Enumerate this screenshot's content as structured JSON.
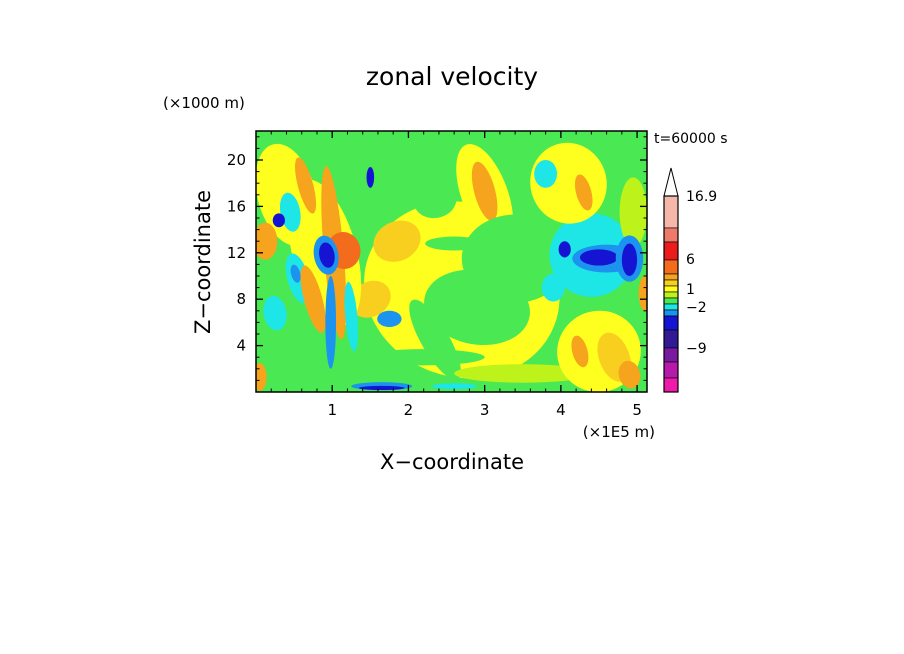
{
  "chart_data": {
    "type": "heatmap",
    "title": "zonal velocity",
    "xlabel": "X−coordinate",
    "ylabel": "Z−coordinate",
    "x_unit": "(×1E5 m)",
    "y_unit": "(×1000 m)",
    "time_label": "t=60000 s",
    "xlim": [
      0,
      5.13
    ],
    "ylim": [
      0,
      22.5
    ],
    "x_ticks": [
      1,
      2,
      3,
      4,
      5
    ],
    "x_tick_labels": [
      "1",
      "2",
      "3",
      "4",
      "5"
    ],
    "y_ticks": [
      4,
      8,
      12,
      16,
      20
    ],
    "y_tick_labels": [
      "4",
      "8",
      "12",
      "16",
      "20"
    ],
    "colorbar": {
      "extend_max": true,
      "labels": [
        "16.9",
        "6",
        "1",
        "−2",
        "−9"
      ],
      "bands": [
        {
          "color": "#f6b7ab"
        },
        {
          "color": "#ee7a6b"
        },
        {
          "color": "#ec1c1c"
        },
        {
          "color": "#f36b1c"
        },
        {
          "color": "#f6a31d"
        },
        {
          "color": "#f8cf1f"
        },
        {
          "color": "#ffff1f"
        },
        {
          "color": "#bdf21a"
        },
        {
          "color": "#4ae852"
        },
        {
          "color": "#1ee6e6"
        },
        {
          "color": "#1c93ee"
        },
        {
          "color": "#1414d2"
        },
        {
          "color": "#321a96"
        },
        {
          "color": "#7a1aa0"
        },
        {
          "color": "#b61aaa"
        },
        {
          "color": "#ee1aaa"
        }
      ]
    },
    "regions": [
      {
        "shape": "rect",
        "x": 0,
        "y": 0,
        "w": 5.13,
        "h": 22.5,
        "color": "#4ae852"
      },
      {
        "shape": "ellipse",
        "cx": 2.7,
        "cy": 8.8,
        "rx": 1.3,
        "ry": 7.5,
        "rot": 20,
        "color": "#ffff1f"
      },
      {
        "shape": "ellipse",
        "cx": 3.0,
        "cy": 17.0,
        "rx": 0.7,
        "ry": 2.0,
        "rot": 70,
        "color": "#ffff1f"
      },
      {
        "shape": "ellipse",
        "cx": 3.0,
        "cy": 17.3,
        "rx": 0.4,
        "ry": 0.9,
        "rot": 75,
        "color": "#f6a31d"
      },
      {
        "shape": "ellipse",
        "cx": 3.4,
        "cy": 11.5,
        "rx": 0.7,
        "ry": 3.8,
        "rot": 0,
        "color": "#4ae852"
      },
      {
        "shape": "ellipse",
        "cx": 2.9,
        "cy": 7.3,
        "rx": 0.7,
        "ry": 3.2,
        "rot": 10,
        "color": "#4ae852"
      },
      {
        "shape": "ellipse",
        "cx": 2.35,
        "cy": 16.5,
        "rx": 0.28,
        "ry": 1.5,
        "rot": -10,
        "color": "#4ae852"
      },
      {
        "shape": "ellipse",
        "cx": 2.35,
        "cy": 4.5,
        "rx": 0.6,
        "ry": 1.2,
        "rot": 60,
        "color": "#4ae852"
      },
      {
        "shape": "ellipse",
        "cx": 3.5,
        "cy": 1.6,
        "rx": 0.9,
        "ry": 0.8,
        "rot": 0,
        "color": "#bdf21a"
      },
      {
        "shape": "ellipse",
        "cx": 2.2,
        "cy": 3.0,
        "rx": 0.8,
        "ry": 0.7,
        "rot": 0,
        "color": "#4ae852"
      },
      {
        "shape": "ellipse",
        "cx": 2.6,
        "cy": 12.8,
        "rx": 0.38,
        "ry": 0.6,
        "rot": 0,
        "color": "#4ae852"
      },
      {
        "shape": "ellipse",
        "cx": 1.85,
        "cy": 13.0,
        "rx": 0.32,
        "ry": 1.7,
        "rot": -25,
        "color": "#f8cf1f"
      },
      {
        "shape": "ellipse",
        "cx": 1.5,
        "cy": 8.0,
        "rx": 0.28,
        "ry": 1.5,
        "rot": -30,
        "color": "#f8cf1f"
      },
      {
        "shape": "ellipse",
        "cx": 1.2,
        "cy": 16.0,
        "rx": 0.18,
        "ry": 2.8,
        "rot": -20,
        "color": "#4ae852"
      },
      {
        "shape": "ellipse",
        "cx": 1.75,
        "cy": 20.5,
        "rx": 0.45,
        "ry": 1.0,
        "rot": 30,
        "color": "#4ae852"
      },
      {
        "shape": "ellipse",
        "cx": 0.4,
        "cy": 17.0,
        "rx": 0.38,
        "ry": 4.5,
        "rot": -15,
        "color": "#ffff1f"
      },
      {
        "shape": "ellipse",
        "cx": 0.9,
        "cy": 12.0,
        "rx": 0.42,
        "ry": 6.5,
        "rot": -15,
        "color": "#ffff1f"
      },
      {
        "shape": "ellipse",
        "cx": 0.2,
        "cy": 10.0,
        "rx": 0.22,
        "ry": 3.5,
        "rot": -10,
        "color": "#4ae852"
      },
      {
        "shape": "ellipse",
        "cx": 0.55,
        "cy": 4.5,
        "rx": 0.4,
        "ry": 3.5,
        "rot": -20,
        "color": "#4ae852"
      },
      {
        "shape": "ellipse",
        "cx": 0.12,
        "cy": 13.0,
        "rx": 0.16,
        "ry": 1.6,
        "rot": 0,
        "color": "#f6a31d"
      },
      {
        "shape": "ellipse",
        "cx": 0.65,
        "cy": 17.8,
        "rx": 0.1,
        "ry": 2.5,
        "rot": -15,
        "color": "#f6a31d"
      },
      {
        "shape": "ellipse",
        "cx": 0.45,
        "cy": 15.5,
        "rx": 0.13,
        "ry": 1.7,
        "rot": -10,
        "color": "#1ee6e6"
      },
      {
        "shape": "ellipse",
        "cx": 0.3,
        "cy": 14.8,
        "rx": 0.08,
        "ry": 0.6,
        "rot": 0,
        "color": "#1414d2"
      },
      {
        "shape": "ellipse",
        "cx": 0.55,
        "cy": 9.8,
        "rx": 0.14,
        "ry": 2.2,
        "rot": -15,
        "color": "#1ee6e6"
      },
      {
        "shape": "ellipse",
        "cx": 0.52,
        "cy": 10.2,
        "rx": 0.06,
        "ry": 0.8,
        "rot": -15,
        "color": "#1c93ee"
      },
      {
        "shape": "ellipse",
        "cx": 0.25,
        "cy": 6.8,
        "rx": 0.15,
        "ry": 1.5,
        "rot": -10,
        "color": "#1ee6e6"
      },
      {
        "shape": "ellipse",
        "cx": 0.75,
        "cy": 8.0,
        "rx": 0.12,
        "ry": 3.0,
        "rot": -15,
        "color": "#f6a31d"
      },
      {
        "shape": "ellipse",
        "cx": 1.02,
        "cy": 12.0,
        "rx": 0.13,
        "ry": 7.5,
        "rot": -5,
        "color": "#f6a31d"
      },
      {
        "shape": "ellipse",
        "cx": 1.15,
        "cy": 12.2,
        "rx": 0.22,
        "ry": 1.6,
        "rot": -10,
        "color": "#f36b1c"
      },
      {
        "shape": "ellipse",
        "cx": 0.92,
        "cy": 11.8,
        "rx": 0.16,
        "ry": 1.7,
        "rot": -10,
        "color": "#1c93ee"
      },
      {
        "shape": "ellipse",
        "cx": 0.93,
        "cy": 11.8,
        "rx": 0.1,
        "ry": 1.1,
        "rot": -10,
        "color": "#1414d2"
      },
      {
        "shape": "ellipse",
        "cx": 0.98,
        "cy": 6.0,
        "rx": 0.07,
        "ry": 4.0,
        "rot": 0,
        "color": "#1c93ee"
      },
      {
        "shape": "ellipse",
        "cx": 1.25,
        "cy": 6.5,
        "rx": 0.08,
        "ry": 3.0,
        "rot": -5,
        "color": "#1ee6e6"
      },
      {
        "shape": "ellipse",
        "cx": 1.5,
        "cy": 18.5,
        "rx": 0.05,
        "ry": 0.9,
        "rot": 0,
        "color": "#1414d2"
      },
      {
        "shape": "ellipse",
        "cx": 1.75,
        "cy": 6.3,
        "rx": 0.16,
        "ry": 0.7,
        "rot": 0,
        "color": "#1c93ee"
      },
      {
        "shape": "ellipse",
        "cx": 0.05,
        "cy": 1.3,
        "rx": 0.09,
        "ry": 1.2,
        "rot": 0,
        "color": "#f6a31d"
      },
      {
        "shape": "ellipse",
        "cx": 1.65,
        "cy": 0.5,
        "rx": 0.4,
        "ry": 0.35,
        "rot": 0,
        "color": "#1c93ee"
      },
      {
        "shape": "ellipse",
        "cx": 1.65,
        "cy": 0.35,
        "rx": 0.3,
        "ry": 0.18,
        "rot": 0,
        "color": "#1414d2"
      },
      {
        "shape": "ellipse",
        "cx": 2.6,
        "cy": 0.5,
        "rx": 0.3,
        "ry": 0.25,
        "rot": 0,
        "color": "#1ee6e6"
      },
      {
        "shape": "ellipse",
        "cx": 4.4,
        "cy": 11.8,
        "rx": 0.55,
        "ry": 3.6,
        "rot": 0,
        "color": "#1ee6e6"
      },
      {
        "shape": "ellipse",
        "cx": 4.1,
        "cy": 18.0,
        "rx": 0.5,
        "ry": 3.5,
        "rot": -15,
        "color": "#ffff1f"
      },
      {
        "shape": "ellipse",
        "cx": 4.5,
        "cy": 3.5,
        "rx": 0.55,
        "ry": 3.5,
        "rot": -15,
        "color": "#ffff1f"
      },
      {
        "shape": "ellipse",
        "cx": 4.7,
        "cy": 3.0,
        "rx": 0.2,
        "ry": 2.2,
        "rot": -20,
        "color": "#f8cf1f"
      },
      {
        "shape": "ellipse",
        "cx": 4.9,
        "cy": 1.5,
        "rx": 0.14,
        "ry": 1.2,
        "rot": -15,
        "color": "#f6a31d"
      },
      {
        "shape": "ellipse",
        "cx": 4.25,
        "cy": 3.5,
        "rx": 0.1,
        "ry": 1.4,
        "rot": -15,
        "color": "#f6a31d"
      },
      {
        "shape": "ellipse",
        "cx": 4.95,
        "cy": 15.5,
        "rx": 0.18,
        "ry": 3.0,
        "rot": 0,
        "color": "#bdf21a"
      },
      {
        "shape": "ellipse",
        "cx": 4.3,
        "cy": 17.2,
        "rx": 0.1,
        "ry": 1.6,
        "rot": -15,
        "color": "#f6a31d"
      },
      {
        "shape": "ellipse",
        "cx": 4.6,
        "cy": 11.5,
        "rx": 0.45,
        "ry": 1.2,
        "rot": 0,
        "color": "#1c93ee"
      },
      {
        "shape": "ellipse",
        "cx": 4.5,
        "cy": 11.6,
        "rx": 0.25,
        "ry": 0.7,
        "rot": 0,
        "color": "#1414d2"
      },
      {
        "shape": "ellipse",
        "cx": 4.9,
        "cy": 11.5,
        "rx": 0.18,
        "ry": 2.0,
        "rot": 0,
        "color": "#1c93ee"
      },
      {
        "shape": "ellipse",
        "cx": 4.9,
        "cy": 11.4,
        "rx": 0.1,
        "ry": 1.4,
        "rot": 0,
        "color": "#1414d2"
      },
      {
        "shape": "ellipse",
        "cx": 4.05,
        "cy": 12.3,
        "rx": 0.08,
        "ry": 0.7,
        "rot": 0,
        "color": "#1414d2"
      },
      {
        "shape": "ellipse",
        "cx": 3.9,
        "cy": 9.0,
        "rx": 0.15,
        "ry": 1.2,
        "rot": 0,
        "color": "#1ee6e6"
      },
      {
        "shape": "ellipse",
        "cx": 3.8,
        "cy": 18.8,
        "rx": 0.15,
        "ry": 1.2,
        "rot": 0,
        "color": "#1ee6e6"
      },
      {
        "shape": "ellipse",
        "cx": 5.1,
        "cy": 8.5,
        "rx": 0.08,
        "ry": 1.5,
        "rot": 0,
        "color": "#f6a31d"
      }
    ]
  }
}
